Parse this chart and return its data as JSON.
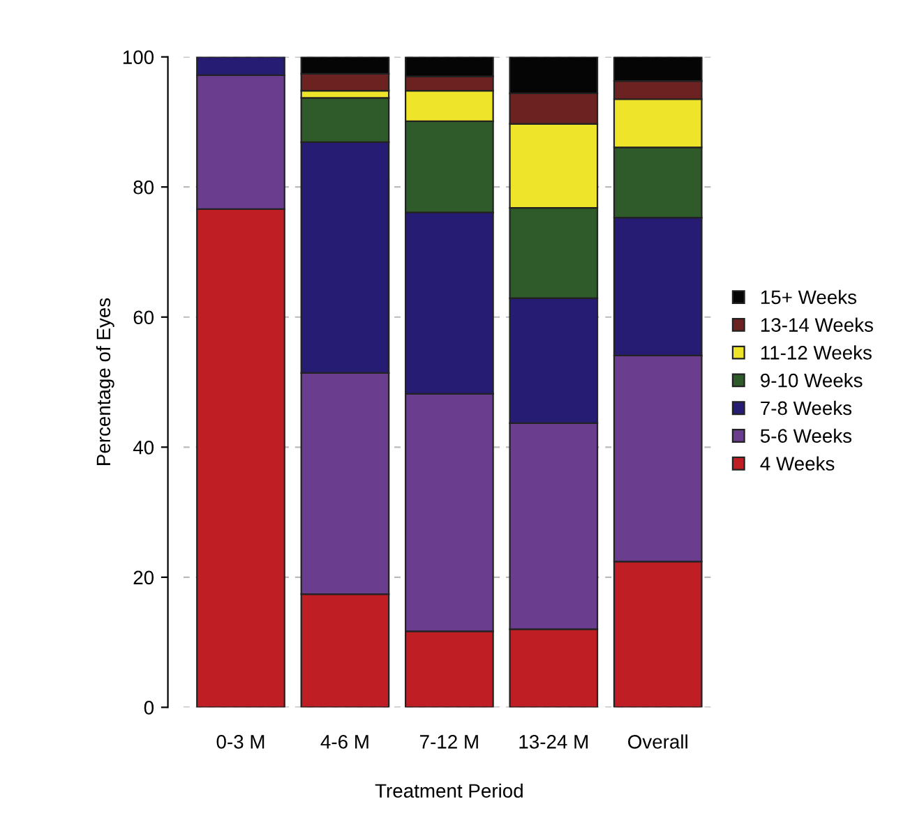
{
  "chart_data": {
    "type": "bar",
    "stacked": true,
    "xlabel": "Treatment Period",
    "ylabel": "Percentage of Eyes",
    "categories": [
      "0-3 M",
      "4-6 M",
      "7-12 M",
      "13-24 M",
      "Overall"
    ],
    "series": [
      {
        "name": "4 Weeks",
        "color": "#be1e24",
        "values": [
          76.6,
          17.4,
          11.7,
          12.0,
          22.4
        ]
      },
      {
        "name": "5-6 Weeks",
        "color": "#6a3d8f",
        "values": [
          20.6,
          34.0,
          36.5,
          31.7,
          31.7
        ]
      },
      {
        "name": "7-8 Weeks",
        "color": "#261c74",
        "values": [
          2.8,
          35.5,
          27.9,
          19.2,
          21.2
        ]
      },
      {
        "name": "9-10 Weeks",
        "color": "#2f5a2a",
        "values": [
          null,
          6.8,
          14.0,
          13.9,
          10.8
        ]
      },
      {
        "name": "11-12 Weeks",
        "color": "#eee52a",
        "values": [
          null,
          1.1,
          4.7,
          12.9,
          7.4
        ]
      },
      {
        "name": "13-14 Weeks",
        "color": "#6b2220",
        "values": [
          null,
          2.6,
          2.2,
          4.7,
          2.8
        ]
      },
      {
        "name": "15+ Weeks",
        "color": "#050505",
        "values": [
          null,
          2.6,
          3.0,
          5.6,
          3.7
        ]
      }
    ],
    "ylim": [
      0,
      100
    ],
    "yticks": [
      0,
      20,
      40,
      60,
      80,
      100
    ],
    "grid": "y",
    "legend": "right"
  }
}
